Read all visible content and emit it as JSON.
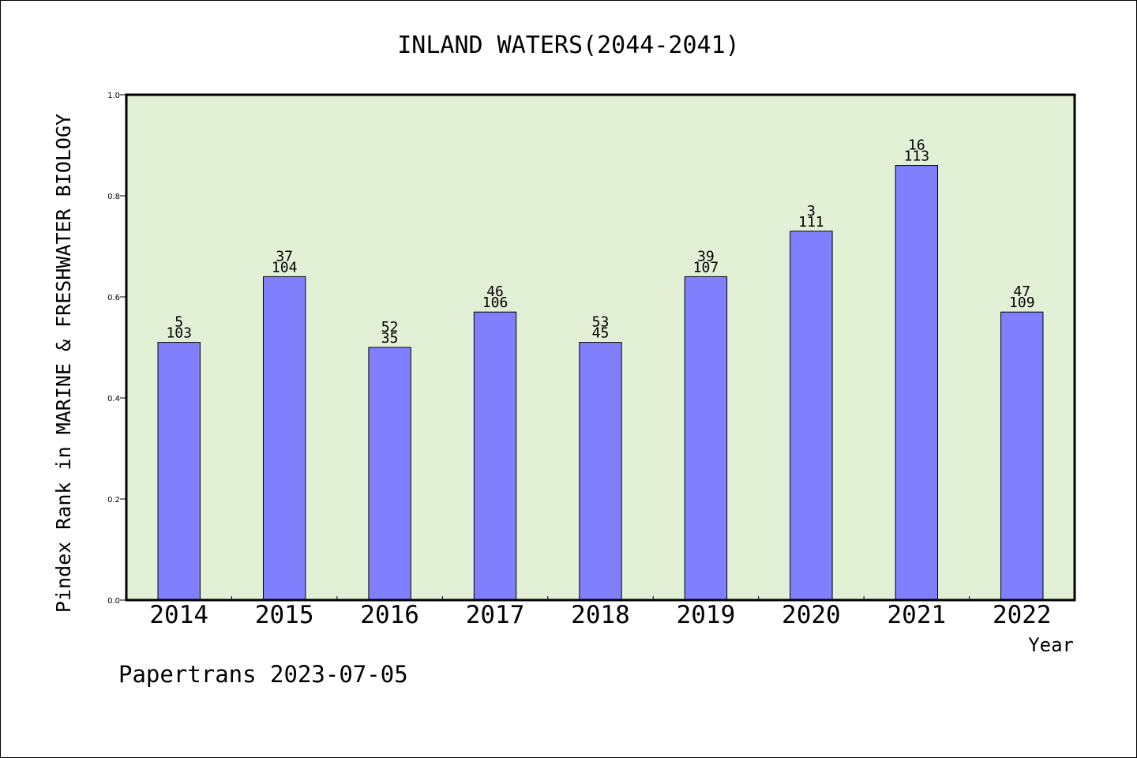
{
  "chart_data": {
    "type": "bar",
    "title": "INLAND WATERS(2044-2041)",
    "ylabel": "Pindex Rank in MARINE & FRESHWATER BIOLOGY",
    "xlabel": "Year",
    "categories": [
      "2014",
      "2015",
      "2016",
      "2017",
      "2018",
      "2019",
      "2020",
      "2021",
      "2022"
    ],
    "values": [
      0.51,
      0.64,
      0.5,
      0.57,
      0.51,
      0.64,
      0.73,
      0.86,
      0.57
    ],
    "label_top": [
      "5",
      "37",
      "52",
      "46",
      "53",
      "39",
      "3",
      "16",
      "47"
    ],
    "label_bottom": [
      "103",
      "104",
      "35",
      "106",
      "45",
      "107",
      "111",
      "113",
      "109"
    ],
    "ylim": [
      0,
      1.0
    ],
    "yticks": [
      "0.0",
      "0.2",
      "0.4",
      "0.6",
      "0.8",
      "1.0"
    ],
    "grid": false,
    "colors": {
      "plot_background": "#e2f0d6",
      "bar": "#8080ff",
      "bar_edge": "#000000"
    }
  },
  "footer": "Papertrans 2023-07-05"
}
